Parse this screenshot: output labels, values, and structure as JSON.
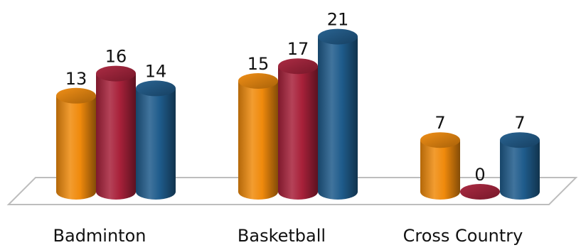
{
  "chart_data": {
    "type": "bar",
    "style": "3d-cylinder",
    "categories": [
      "Badminton",
      "Basketball",
      "Cross Country"
    ],
    "series": [
      {
        "values": [
          13,
          15,
          7
        ],
        "color": "#f08a0c"
      },
      {
        "values": [
          16,
          17,
          0
        ],
        "color": "#a8213a"
      },
      {
        "values": [
          14,
          21,
          7
        ],
        "color": "#1f5c8c"
      }
    ],
    "ylim": [
      0,
      21
    ],
    "grid": false,
    "legend": "none",
    "data_labels": true
  }
}
